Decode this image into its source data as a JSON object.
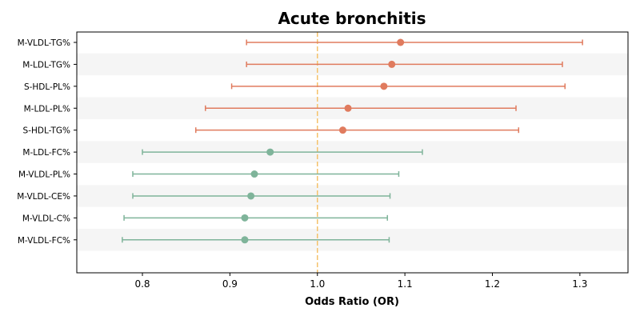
{
  "chart_data": {
    "type": "forest",
    "title": "Acute bronchitis",
    "xlabel": "Odds Ratio (OR)",
    "ylabel": "",
    "xlim": [
      0.725,
      1.355
    ],
    "xticks": [
      0.8,
      0.9,
      1.0,
      1.1,
      1.2,
      1.3
    ],
    "xtick_labels": [
      "0.8",
      "0.9",
      "1.0",
      "1.1",
      "1.2",
      "1.3"
    ],
    "reference_line": 1.0,
    "grid": false,
    "categories": [
      "M-VLDL-TG%",
      "M-LDL-TG%",
      "S-HDL-PL%",
      "M-LDL-PL%",
      "S-HDL-TG%",
      "M-LDL-FC%",
      "M-VLDL-PL%",
      "M-VLDL-CE%",
      "M-VLDL-C%",
      "M-VLDL-FC%"
    ],
    "points": [
      {
        "label": "M-VLDL-TG%",
        "or": 1.095,
        "lower": 0.919,
        "upper": 1.303,
        "color": "#e07b5e"
      },
      {
        "label": "M-LDL-TG%",
        "or": 1.085,
        "lower": 0.919,
        "upper": 1.28,
        "color": "#e07b5e"
      },
      {
        "label": "S-HDL-PL%",
        "or": 1.076,
        "lower": 0.902,
        "upper": 1.283,
        "color": "#e07b5e"
      },
      {
        "label": "M-LDL-PL%",
        "or": 1.035,
        "lower": 0.872,
        "upper": 1.227,
        "color": "#e07b5e"
      },
      {
        "label": "S-HDL-TG%",
        "or": 1.029,
        "lower": 0.861,
        "upper": 1.23,
        "color": "#e07b5e"
      },
      {
        "label": "M-LDL-FC%",
        "or": 0.946,
        "lower": 0.8,
        "upper": 1.12,
        "color": "#7fb49a"
      },
      {
        "label": "M-VLDL-PL%",
        "or": 0.928,
        "lower": 0.789,
        "upper": 1.093,
        "color": "#7fb49a"
      },
      {
        "label": "M-VLDL-CE%",
        "or": 0.924,
        "lower": 0.789,
        "upper": 1.083,
        "color": "#7fb49a"
      },
      {
        "label": "M-VLDL-C%",
        "or": 0.917,
        "lower": 0.779,
        "upper": 1.08,
        "color": "#7fb49a"
      },
      {
        "label": "M-VLDL-FC%",
        "or": 0.917,
        "lower": 0.777,
        "upper": 1.082,
        "color": "#7fb49a"
      }
    ],
    "colors": {
      "risk": "#e07b5e",
      "protective": "#7fb49a",
      "reference": "#f5c26b",
      "stripe": "#f5f5f5"
    }
  }
}
